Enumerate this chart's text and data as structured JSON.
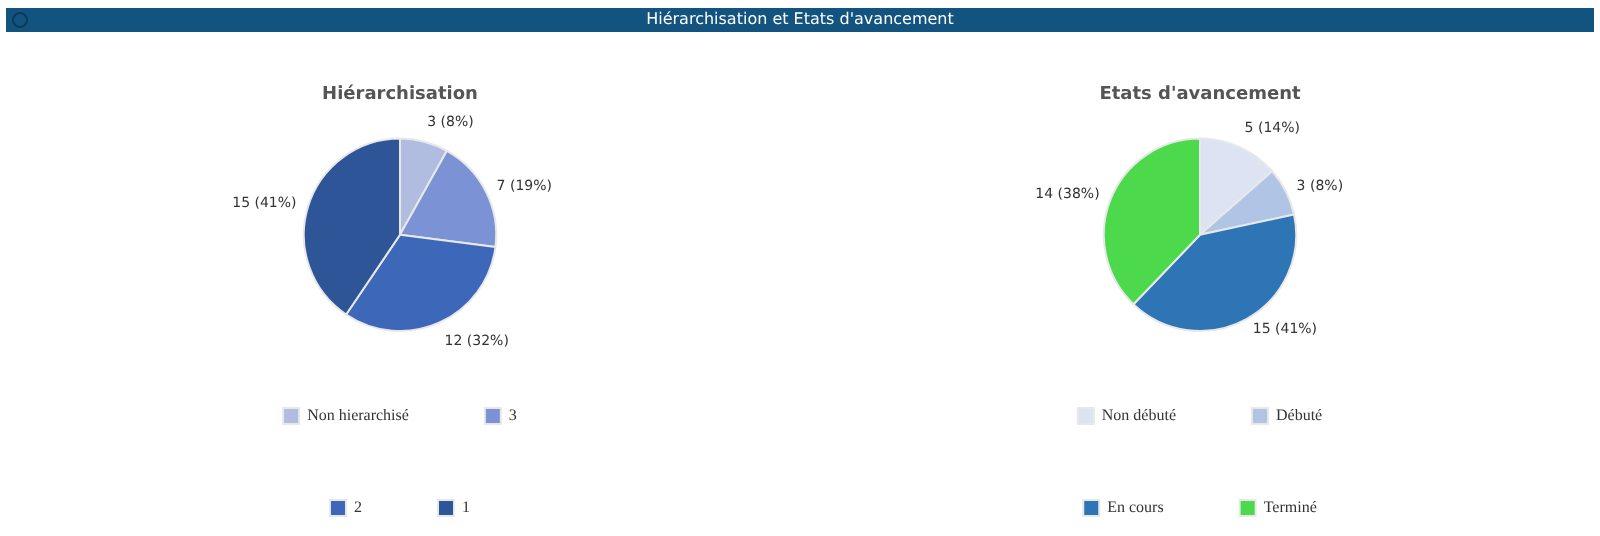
{
  "chart_data": [
    {
      "type": "pie",
      "title": "Hiérarchisation",
      "annotations": [
        "Hiérarchisation et Etats d'avancement"
      ],
      "categories": [
        "Non hierarchisé",
        "3",
        "2",
        "1"
      ],
      "values": [
        3,
        7,
        12,
        15
      ],
      "value_labels": [
        "3 (8%)",
        "7 (19%)",
        "12 (32%)",
        "15 (41%)"
      ],
      "colors": [
        "#b0bce0",
        "#7b93d4",
        "#3d67b8",
        "#2e5597"
      ],
      "legend": "bottom"
    },
    {
      "type": "pie",
      "title": "Etats d'avancement",
      "categories": [
        "Non débuté",
        "Débuté",
        "En cours",
        "Terminé"
      ],
      "values": [
        5,
        3,
        15,
        14
      ],
      "value_labels": [
        "5 (14%)",
        "3 (8%)",
        "15 (41%)",
        "14 (38%)"
      ],
      "colors": [
        "#dce3f3",
        "#b0c4e6",
        "#2e75b6",
        "#4cd94c"
      ],
      "legend": "bottom"
    }
  ]
}
